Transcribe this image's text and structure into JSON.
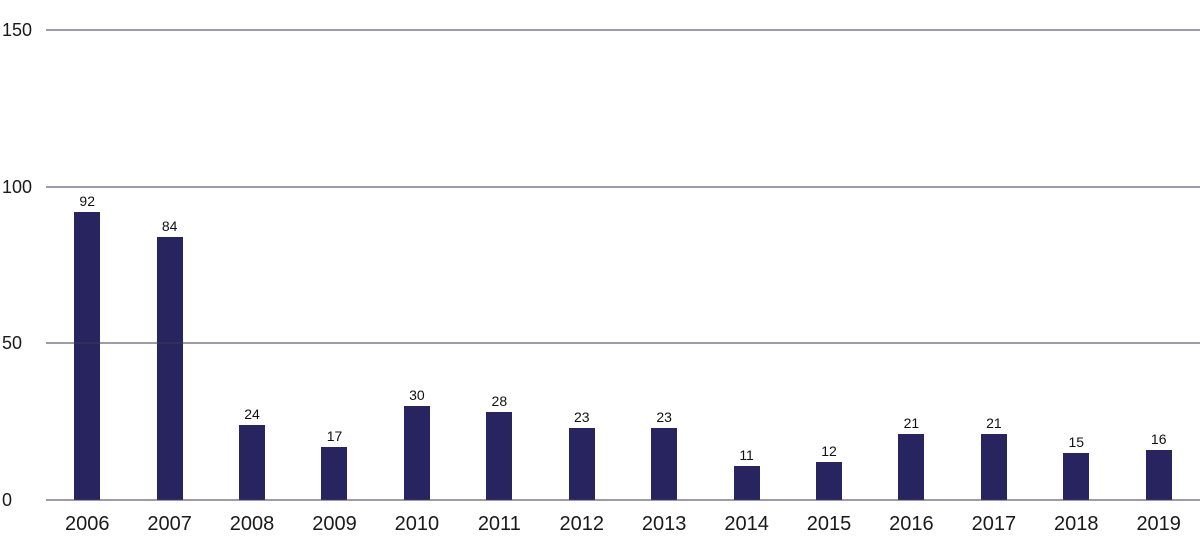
{
  "chart_data": {
    "type": "bar",
    "title": "",
    "xlabel": "",
    "ylabel": "",
    "categories": [
      "2006",
      "2007",
      "2008",
      "2009",
      "2010",
      "2011",
      "2012",
      "2013",
      "2014",
      "2015",
      "2016",
      "2017",
      "2018",
      "2019"
    ],
    "values": [
      92,
      84,
      24,
      17,
      30,
      28,
      23,
      23,
      11,
      12,
      21,
      21,
      15,
      16
    ],
    "ylim": [
      0,
      150
    ],
    "yticks": [
      0,
      50,
      100,
      150
    ],
    "grid": true,
    "legend": "none",
    "bar_color": "#282460",
    "gridline_color": "#3c3a5a",
    "text_color": "#1a1a1a"
  }
}
